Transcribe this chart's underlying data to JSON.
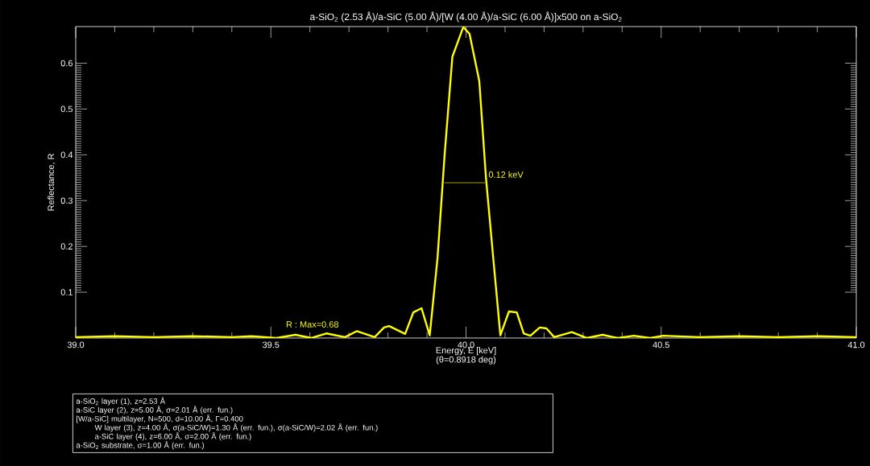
{
  "chart_data": {
    "type": "line",
    "title": "a-SiO$_{2}$ (2.53 Å)/a-SiC (5.00 Å)/[W (4.00 Å)/a-SiC (6.00 Å)]x500 on a-SiO$_{2}$",
    "xlabel": "Energy, E [keV]",
    "ylabel": "Reflectance, R",
    "xlim": [
      39.0,
      41.0
    ],
    "ylim": [
      0,
      0.68
    ],
    "xticks": [
      {
        "value": 39.0,
        "label": "39.0"
      },
      39.5,
      {
        "value": 40.0,
        "label": "40.0"
      },
      40.5,
      {
        "value": 41.0,
        "label": "41.0"
      }
    ],
    "yticks": [
      0.1,
      0.2,
      0.3,
      0.4,
      0.5,
      0.6
    ],
    "marker": "none",
    "line_style": "solid",
    "series": [
      {
        "color": "#ffff00",
        "x": [
          39.0,
          39.1,
          39.2,
          39.3,
          39.4,
          39.45,
          39.514,
          39.563,
          39.604,
          39.642,
          39.69,
          39.72,
          39.766,
          39.79,
          39.803,
          39.844,
          39.865,
          39.886,
          39.907,
          39.927,
          39.945,
          39.965,
          39.993,
          40.009,
          40.034,
          40.051,
          40.071,
          40.088,
          40.11,
          40.13,
          40.148,
          40.165,
          40.189,
          40.206,
          40.226,
          40.271,
          40.309,
          40.35,
          40.389,
          40.43,
          40.472,
          40.505,
          40.6,
          40.7,
          40.8,
          40.9,
          41.0
        ],
        "values": [
          0.002,
          0.004,
          0.002,
          0.004,
          0.002,
          0.004,
          0.0,
          0.007,
          0.0,
          0.01,
          0.002,
          0.015,
          0.002,
          0.023,
          0.026,
          0.009,
          0.056,
          0.065,
          0.006,
          0.175,
          0.398,
          0.614,
          0.679,
          0.664,
          0.561,
          0.351,
          0.163,
          0.006,
          0.058,
          0.056,
          0.01,
          0.005,
          0.023,
          0.021,
          0.002,
          0.013,
          0.0,
          0.007,
          0.0,
          0.005,
          0.0,
          0.005,
          0.002,
          0.004,
          0.002,
          0.004,
          0.002
        ]
      },
      {
        "color": "#c8c800",
        "x": [
          39.945,
          40.049
        ],
        "values": [
          0.339,
          0.339
        ]
      }
    ],
    "annotations": [
      {
        "text": "0.12 keV",
        "x": 40.049,
        "y": 0.339
      },
      {
        "text": "R : Max=0.68",
        "x": 39.53,
        "y": 0.012
      },
      "(θ=0.8918 deg)",
      "a-SiO$_{2}$ layer (1), z=2.53 Å",
      "a-SiC layer (2), z=5.00 Å, σ=2.01 Å (err. fun.)",
      "[W/a-SiC] multilayer, N=500, d=10.00 Å, Γ=0.400",
      "    W layer (3), z=4.00 Å, σ(a-SiC/W)=1.30 Å (err. fun.), σ(a-SiC/W)=2.02 Å (err. fun.)",
      "    a-SiC layer (4), z=6.00 Å, σ=2.00 Å (err. fun.)",
      "a-SiO$_{2}$ substrate, σ=1.00 Å (err. fun.)"
    ]
  }
}
